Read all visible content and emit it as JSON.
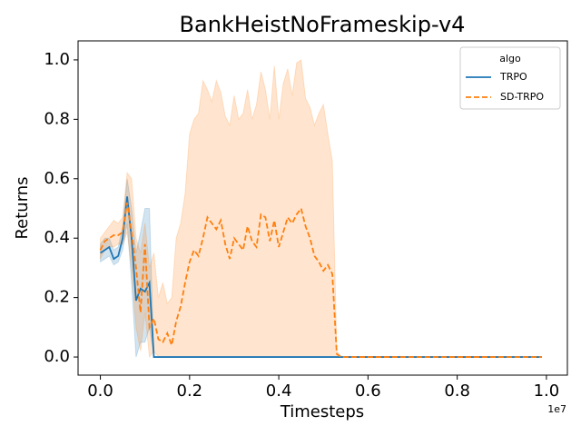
{
  "chart_data": {
    "type": "line",
    "title": "BankHeistNoFrameskip-v4",
    "x_label": "Timesteps",
    "y_label": "Returns",
    "x_offset_label": "1e7",
    "legend_title": "algo",
    "legend": "upper right",
    "grid": false,
    "x": [
      0,
      0.01,
      0.02,
      0.03,
      0.04,
      0.05,
      0.06,
      0.07,
      0.08,
      0.09,
      0.1,
      0.11,
      0.12,
      0.13,
      0.14,
      0.15,
      0.16,
      0.17,
      0.18,
      0.19,
      0.2,
      0.21,
      0.22,
      0.23,
      0.24,
      0.25,
      0.26,
      0.27,
      0.28,
      0.29,
      0.3,
      0.31,
      0.32,
      0.33,
      0.34,
      0.35,
      0.36,
      0.37,
      0.38,
      0.39,
      0.4,
      0.41,
      0.42,
      0.43,
      0.44,
      0.45,
      0.46,
      0.47,
      0.48,
      0.49,
      0.5,
      0.51,
      0.52,
      0.53,
      0.54,
      0.55,
      0.6,
      0.7,
      0.8,
      0.9,
      0.99
    ],
    "series": [
      {
        "name": "TRPO",
        "color": "#1f77b4",
        "dashed": false,
        "values": [
          0.35,
          0.36,
          0.37,
          0.33,
          0.34,
          0.4,
          0.54,
          0.4,
          0.19,
          0.23,
          0.22,
          0.25,
          0,
          0,
          0,
          0,
          0,
          0,
          0,
          0,
          0,
          0,
          0,
          0,
          0,
          0,
          0,
          0,
          0,
          0,
          0,
          0,
          0,
          0,
          0,
          0,
          0,
          0,
          0,
          0,
          0,
          0,
          0,
          0,
          0,
          0,
          0,
          0,
          0,
          0,
          0,
          0,
          0,
          0,
          0,
          0,
          0,
          0,
          0,
          0,
          0
        ],
        "lower": [
          0.32,
          0.33,
          0.34,
          0.31,
          0.32,
          0.36,
          0.45,
          0.25,
          0,
          0.05,
          0.05,
          0.1,
          0,
          0,
          0,
          0,
          0,
          0,
          0,
          0,
          0,
          0,
          0,
          0,
          0,
          0,
          0,
          0,
          0,
          0,
          0,
          0,
          0,
          0,
          0,
          0,
          0,
          0,
          0,
          0,
          0,
          0,
          0,
          0,
          0,
          0,
          0,
          0,
          0,
          0,
          0,
          0,
          0,
          0,
          0,
          0,
          0,
          0,
          0,
          0,
          0
        ],
        "upper": [
          0.38,
          0.4,
          0.4,
          0.36,
          0.37,
          0.44,
          0.6,
          0.5,
          0.35,
          0.42,
          0.5,
          0.5,
          0,
          0,
          0,
          0,
          0,
          0,
          0,
          0,
          0,
          0,
          0,
          0,
          0,
          0,
          0,
          0,
          0,
          0,
          0,
          0,
          0,
          0,
          0,
          0,
          0,
          0,
          0,
          0,
          0,
          0,
          0,
          0,
          0,
          0,
          0,
          0,
          0,
          0,
          0,
          0,
          0,
          0,
          0,
          0,
          0,
          0,
          0,
          0,
          0
        ]
      },
      {
        "name": "SD-TRPO",
        "color": "#ff7f0e",
        "dashed": true,
        "values": [
          0.36,
          0.39,
          0.4,
          0.41,
          0.41,
          0.42,
          0.52,
          0.42,
          0.3,
          0.15,
          0.38,
          0.1,
          0.13,
          0.06,
          0.05,
          0.08,
          0.04,
          0.12,
          0.17,
          0.25,
          0.32,
          0.36,
          0.34,
          0.4,
          0.47,
          0.45,
          0.43,
          0.46,
          0.38,
          0.33,
          0.4,
          0.38,
          0.36,
          0.44,
          0.39,
          0.37,
          0.48,
          0.47,
          0.39,
          0.46,
          0.37,
          0.42,
          0.47,
          0.45,
          0.48,
          0.5,
          0.44,
          0.4,
          0.34,
          0.32,
          0.29,
          0.31,
          0.28,
          0.01,
          0,
          0,
          0,
          0,
          0,
          0,
          0
        ],
        "lower": [
          0.33,
          0.36,
          0.37,
          0.37,
          0.38,
          0.38,
          0.42,
          0.3,
          0.1,
          0.02,
          0.15,
          0,
          0.02,
          0,
          0,
          0,
          0,
          0,
          0,
          0,
          0,
          0,
          0,
          0,
          0,
          0,
          0,
          0,
          0,
          0,
          0,
          0,
          0,
          0,
          0,
          0,
          0,
          0,
          0,
          0,
          0,
          0,
          0,
          0,
          0,
          0,
          0,
          0,
          0,
          0,
          0,
          0,
          0,
          0,
          0,
          0,
          0,
          0,
          0,
          0,
          0
        ],
        "upper": [
          0.4,
          0.42,
          0.44,
          0.46,
          0.45,
          0.47,
          0.62,
          0.6,
          0.4,
          0.35,
          0.45,
          0.3,
          0.35,
          0.2,
          0.25,
          0.18,
          0.2,
          0.4,
          0.45,
          0.55,
          0.75,
          0.8,
          0.82,
          0.93,
          0.9,
          0.86,
          0.93,
          0.89,
          0.81,
          0.78,
          0.88,
          0.8,
          0.82,
          0.9,
          0.8,
          0.85,
          0.96,
          0.9,
          0.8,
          0.98,
          0.8,
          0.92,
          0.97,
          0.88,
          0.99,
          1.0,
          0.87,
          0.84,
          0.78,
          0.82,
          0.85,
          0.75,
          0.66,
          0.02,
          0,
          0,
          0,
          0,
          0,
          0,
          0
        ]
      }
    ],
    "xlim": [
      -0.05,
      1.047
    ],
    "ylim": [
      -0.061,
      1.064
    ],
    "xticks": [
      {
        "value": 0,
        "label": "0.0"
      },
      0.2,
      0.4,
      0.6,
      0.8,
      {
        "value": 1,
        "label": "1.0"
      }
    ],
    "yticks": [
      {
        "value": 0,
        "label": "0.0"
      },
      0.2,
      0.4,
      0.6,
      0.8,
      {
        "value": 1,
        "label": "1.0"
      }
    ]
  }
}
